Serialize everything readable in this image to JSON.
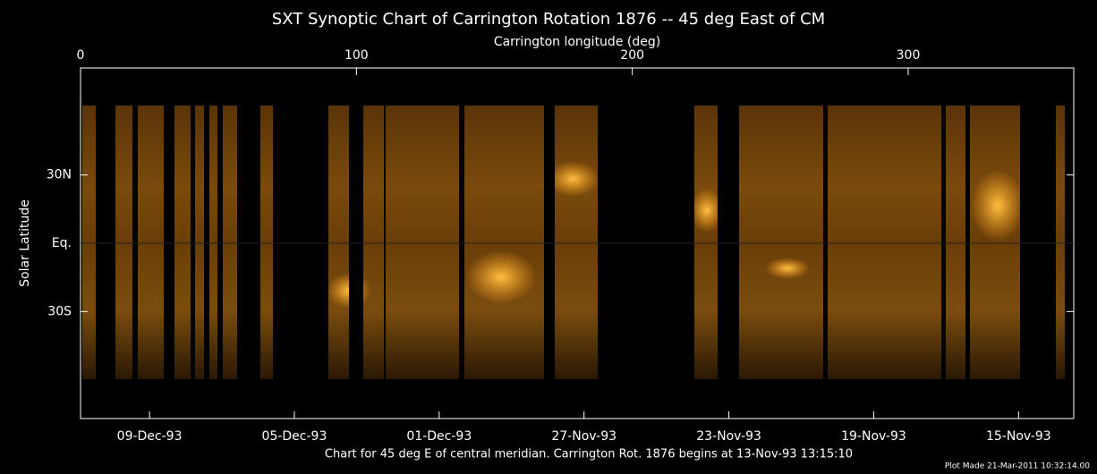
{
  "chart_data": {
    "type": "image",
    "title": "SXT Synoptic Chart of Carrington Rotation 1876 -- 45 deg East of CM",
    "x_label": "Carrington longitude (deg)",
    "y_label": "Solar Latitude",
    "xlim": [
      0,
      360
    ],
    "xticks": [
      0,
      100,
      200,
      300
    ],
    "ylim": [
      -77,
      77
    ],
    "yticks": [
      {
        "value": 30,
        "label": "30N"
      },
      {
        "value": 0,
        "label": "Eq."
      },
      {
        "value": -30,
        "label": "30S"
      }
    ],
    "x2ticks": [
      {
        "value": 25,
        "label": "09-Dec-93"
      },
      {
        "value": 77.5,
        "label": "05-Dec-93"
      },
      {
        "value": 130,
        "label": "01-Dec-93"
      },
      {
        "value": 182.5,
        "label": "27-Nov-93"
      },
      {
        "value": 235,
        "label": "23-Nov-93"
      },
      {
        "value": 287.5,
        "label": "19-Nov-93"
      },
      {
        "value": 340,
        "label": "15-Nov-93"
      }
    ],
    "caption": "Chart for 45 deg E of central meridian.  Carrington Rot. 1876 begins at 13-Nov-93 13:15:10",
    "footnote": "Plot Made 21-Mar-2011 10:32:14.00"
  }
}
